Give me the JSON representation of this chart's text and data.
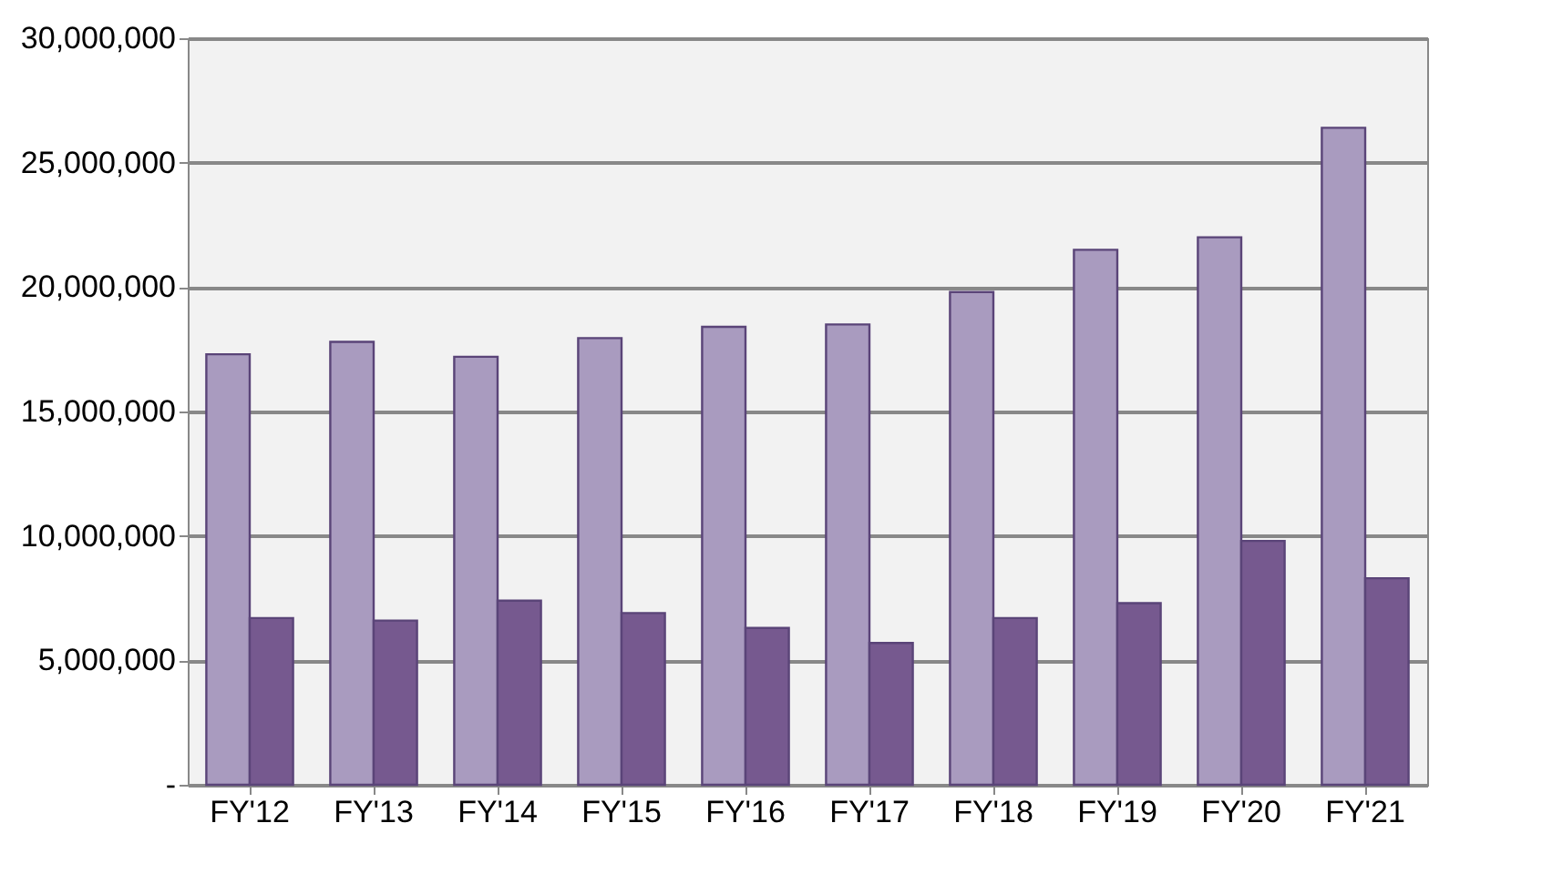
{
  "chart_data": {
    "type": "bar",
    "categories": [
      "FY'12",
      "FY'13",
      "FY'14",
      "FY'15",
      "FY'16",
      "FY'17",
      "FY'18",
      "FY'19",
      "FY'20",
      "FY'21"
    ],
    "series": [
      {
        "color": "#a99bbf",
        "values": [
          17300000,
          17800000,
          17200000,
          17950000,
          18400000,
          18500000,
          19800000,
          21500000,
          22000000,
          26400000
        ]
      },
      {
        "color": "#76598f",
        "values": [
          6700000,
          6600000,
          7400000,
          6900000,
          6300000,
          5700000,
          6700000,
          7300000,
          9800000,
          8300000
        ]
      }
    ],
    "ylim": [
      0,
      30000000
    ],
    "yticks": [
      {
        "value": 0,
        "label": "-"
      },
      {
        "value": 5000000,
        "label": "5,000,000"
      },
      {
        "value": 10000000,
        "label": "10,000,000"
      },
      {
        "value": 15000000,
        "label": "15,000,000"
      },
      {
        "value": 20000000,
        "label": "20,000,000"
      },
      {
        "value": 25000000,
        "label": "25,000,000"
      },
      {
        "value": 30000000,
        "label": "30,000,000"
      }
    ],
    "grid": "y",
    "legend": false
  }
}
